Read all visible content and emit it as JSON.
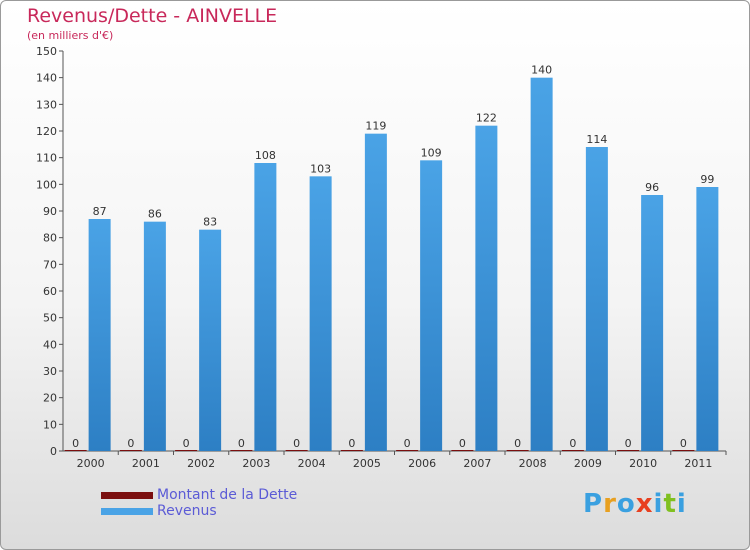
{
  "title": "Revenus/Dette - AINVELLE",
  "subtitle": "(en milliers d'€)",
  "colors": {
    "dette": "#7b0f0f",
    "revenus": "#4aa3e6",
    "revenus_dark": "#2d7fc4",
    "title": "#c8285a",
    "legend_text": "#5b5bd6"
  },
  "logo": {
    "text": "Proxiti",
    "colors": [
      "#3aa0e0",
      "#e8a020",
      "#3aa0e0",
      "#e84020",
      "#3aa0e0",
      "#80c020",
      "#3aa0e0"
    ]
  },
  "chart_data": {
    "type": "bar",
    "categories": [
      "2000",
      "2001",
      "2002",
      "2003",
      "2004",
      "2005",
      "2006",
      "2007",
      "2008",
      "2009",
      "2010",
      "2011"
    ],
    "series": [
      {
        "name": "Montant de la Dette",
        "values": [
          0,
          0,
          0,
          0,
          0,
          0,
          0,
          0,
          0,
          0,
          0,
          0
        ]
      },
      {
        "name": "Revenus",
        "values": [
          87,
          86,
          83,
          108,
          103,
          119,
          109,
          122,
          140,
          114,
          96,
          99
        ]
      }
    ],
    "ylim": [
      0,
      150
    ],
    "yticks": [
      0,
      10,
      20,
      30,
      40,
      50,
      60,
      70,
      80,
      90,
      100,
      110,
      120,
      130,
      140,
      150
    ],
    "legend_position": "bottom-left",
    "grid": false
  }
}
